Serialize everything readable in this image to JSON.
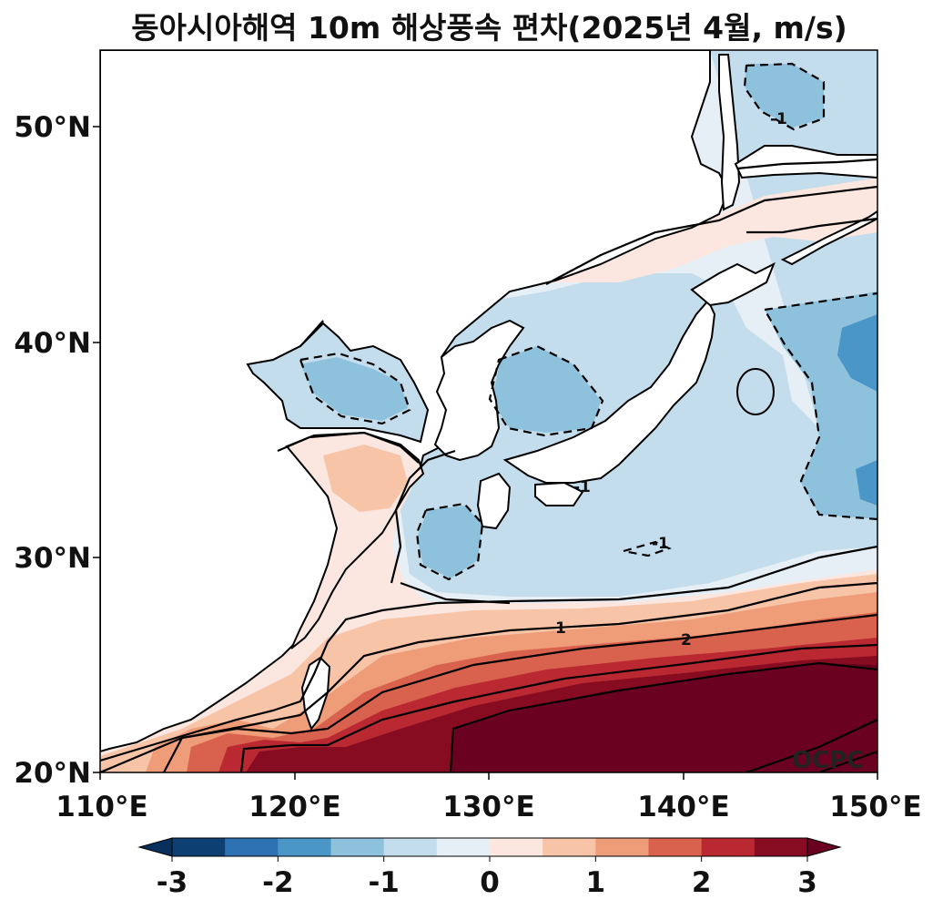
{
  "title": "동아시아해역 10m 해상풍속 편차(2025년 4월, m/s)",
  "map": {
    "lat_ticks": [
      "50°N",
      "40°N",
      "30°N",
      "20°N"
    ],
    "lon_ticks": [
      "110°E",
      "120°E",
      "130°E",
      "140°E",
      "150°E"
    ],
    "lon_range": [
      110,
      150
    ],
    "lat_range": [
      20,
      53.5
    ],
    "contour_labels": [
      "1",
      "2",
      "-1",
      "-1",
      "-1"
    ]
  },
  "colorbar": {
    "ticks": [
      "-3",
      "-2",
      "-1",
      "0",
      "1",
      "2",
      "3"
    ],
    "colors": [
      "#0e3f73",
      "#2f72b3",
      "#4996c7",
      "#8ec1dc",
      "#c4ddec",
      "#e7eff6",
      "#fbe7df",
      "#f7c4a8",
      "#ef9c79",
      "#d9624e",
      "#ba2931",
      "#870c22"
    ],
    "extend_low": "#08305c",
    "extend_high": "#6b0121"
  },
  "watermark": "OCPC"
}
